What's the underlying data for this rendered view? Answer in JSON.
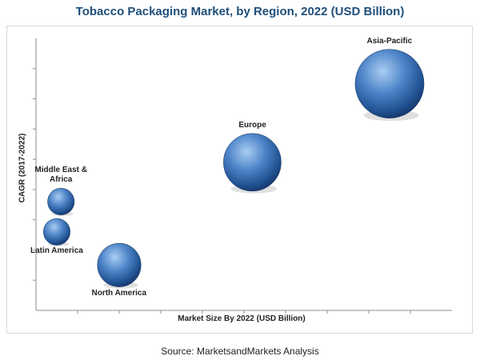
{
  "chart_data": {
    "type": "scatter",
    "title": "Tobacco Packaging Market, by Region, 2022 (USD Billion)",
    "xlabel": "Market Size By 2022 (USD Billion)",
    "ylabel": "CAGR (2017-2022)",
    "grid": false,
    "xlim": [
      0,
      10
    ],
    "ylim": [
      0,
      9
    ],
    "series": [
      {
        "name": "Asia-Pacific",
        "x": 8.5,
        "y": 7.5,
        "size": 10
      },
      {
        "name": "Europe",
        "x": 5.2,
        "y": 4.9,
        "size": 7
      },
      {
        "name": "Middle East & Africa",
        "x": 0.6,
        "y": 3.6,
        "size": 1.5
      },
      {
        "name": "Latin America",
        "x": 0.5,
        "y": 2.6,
        "size": 1.5
      },
      {
        "name": "North America",
        "x": 2.0,
        "y": 1.5,
        "size": 4
      }
    ]
  },
  "source": "Source: MarketsandMarkets Analysis"
}
